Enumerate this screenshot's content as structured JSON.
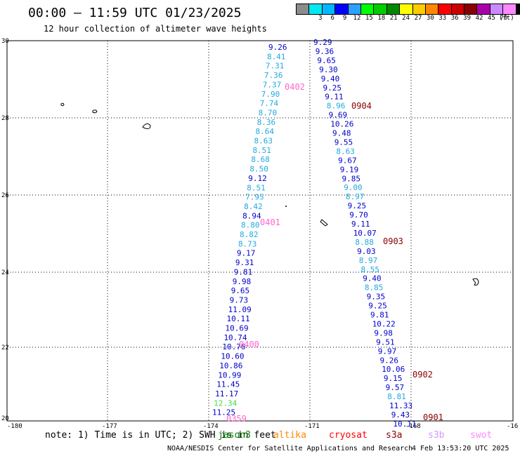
{
  "title": "00:00 – 11:59 UTC 01/23/2025",
  "subtitle": "12 hour collection of altimeter wave heights",
  "colorbar": {
    "unit": "(ft)",
    "bins": [
      {
        "label": "",
        "color": "#8c8c8c"
      },
      {
        "label": "3",
        "color": "#00e8f0"
      },
      {
        "label": "6",
        "color": "#00b8ff"
      },
      {
        "label": "9",
        "color": "#0000ff"
      },
      {
        "label": "12",
        "color": "#2aa0ff"
      },
      {
        "label": "15",
        "color": "#00ff00"
      },
      {
        "label": "18",
        "color": "#00cc00"
      },
      {
        "label": "21",
        "color": "#008800"
      },
      {
        "label": "24",
        "color": "#ffff00"
      },
      {
        "label": "27",
        "color": "#ffcc00"
      },
      {
        "label": "30",
        "color": "#ff8800"
      },
      {
        "label": "33",
        "color": "#ff0000"
      },
      {
        "label": "36",
        "color": "#cc0000"
      },
      {
        "label": "39",
        "color": "#880000"
      },
      {
        "label": "42",
        "color": "#aa00aa"
      },
      {
        "label": "45",
        "color": "#cc88ff"
      },
      {
        "label": "70",
        "color": "#ff88ff"
      },
      {
        "label": "",
        "color": "#000000"
      }
    ]
  },
  "axes": {
    "lon_ticks": [
      "-180",
      "-177",
      "-174",
      "-171",
      "-168",
      "-16"
    ],
    "lat_ticks": [
      "30",
      "28",
      "26",
      "24",
      "22",
      "20"
    ]
  },
  "tracks": [
    {
      "values": [
        "9.26",
        "8.41",
        "7.31",
        "7.36",
        "7.37",
        "7.90",
        "7.74",
        "8.70",
        "8.36",
        "8.64",
        "8.63",
        "8.51",
        "8.68",
        "8.50",
        "9.12",
        "8.51",
        "7.95",
        "8.42",
        "8.94",
        "8.80",
        "8.82",
        "8.73",
        "9.17",
        "9.31",
        "9.81",
        "9.98",
        "9.65",
        "9.73",
        "11.09",
        "10.11",
        "10.69",
        "10.74",
        "10.76",
        "10.60",
        "10.86",
        "10.99",
        "11.45",
        "11.17",
        "12.34",
        "11.25"
      ],
      "colors": [
        "#0000cc",
        "#22a8e0",
        "#22a8e0",
        "#22a8e0",
        "#22a8e0",
        "#22a8e0",
        "#22a8e0",
        "#22a8e0",
        "#22a8e0",
        "#22a8e0",
        "#22a8e0",
        "#22a8e0",
        "#22a8e0",
        "#22a8e0",
        "#0000cc",
        "#22a8e0",
        "#22a8e0",
        "#22a8e0",
        "#0000cc",
        "#22a8e0",
        "#22a8e0",
        "#22a8e0",
        "#0000cc",
        "#0000cc",
        "#0000cc",
        "#0000cc",
        "#0000cc",
        "#0000cc",
        "#0000cc",
        "#0000cc",
        "#0000cc",
        "#0000cc",
        "#0000cc",
        "#0000cc",
        "#0000cc",
        "#0000cc",
        "#0000cc",
        "#0000cc",
        "#44dd44",
        "#0000cc"
      ]
    },
    {
      "values": [
        "9.29",
        "9.36",
        "9.65",
        "9.30",
        "9.40",
        "9.25",
        "9.11",
        "8.96",
        "9.69",
        "10.26",
        "9.48",
        "9.55",
        "8.63",
        "9.67",
        "9.19",
        "9.85",
        "9.00",
        "8.97",
        "9.25",
        "9.70",
        "9.11",
        "10.07",
        "8.88",
        "9.03",
        "8.97",
        "8.55",
        "9.40",
        "8.85",
        "9.35",
        "9.25",
        "9.81",
        "10.22",
        "9.98",
        "9.51",
        "9.97",
        "9.26",
        "10.06",
        "9.15",
        "9.57",
        "8.81",
        "11.33",
        "9.43",
        "10.11"
      ],
      "colors": [
        "#0000cc",
        "#0000cc",
        "#0000cc",
        "#0000cc",
        "#0000cc",
        "#0000cc",
        "#0000cc",
        "#22a8e0",
        "#0000cc",
        "#0000cc",
        "#0000cc",
        "#0000cc",
        "#22a8e0",
        "#0000cc",
        "#0000cc",
        "#0000cc",
        "#22a8e0",
        "#22a8e0",
        "#0000cc",
        "#0000cc",
        "#0000cc",
        "#0000cc",
        "#22a8e0",
        "#0000cc",
        "#22a8e0",
        "#22a8e0",
        "#0000cc",
        "#22a8e0",
        "#0000cc",
        "#0000cc",
        "#0000cc",
        "#0000cc",
        "#0000cc",
        "#0000cc",
        "#0000cc",
        "#0000cc",
        "#0000cc",
        "#0000cc",
        "#0000cc",
        "#22a8e0",
        "#0000cc",
        "#0000cc",
        "#0000cc"
      ]
    }
  ],
  "pass_labels": [
    {
      "text": "0402",
      "color": "#ff66cc"
    },
    {
      "text": "0401",
      "color": "#ff66cc"
    },
    {
      "text": "0400",
      "color": "#ff66cc"
    },
    {
      "text": "0359",
      "color": "#ff66cc"
    },
    {
      "text": "0904",
      "color": "#880000"
    },
    {
      "text": "0903",
      "color": "#880000"
    },
    {
      "text": "0902",
      "color": "#880000"
    },
    {
      "text": "0901",
      "color": "#880000"
    }
  ],
  "note": "note:  1) Time is in UTC; 2) SWH is in feet",
  "satellites": [
    {
      "name": "jason3",
      "color": "#008800"
    },
    {
      "name": "altika",
      "color": "#ff8800"
    },
    {
      "name": "cryosat",
      "color": "#ff0000"
    },
    {
      "name": "s3a",
      "color": "#880000"
    },
    {
      "name": "s3b",
      "color": "#cc99ff"
    },
    {
      "name": "swot",
      "color": "#ff88ff"
    }
  ],
  "credit": "NOAA/NESDIS Center for Satellite Applications and Research",
  "timestamp": "4 Feb 13:53:20 UTC 2025"
}
